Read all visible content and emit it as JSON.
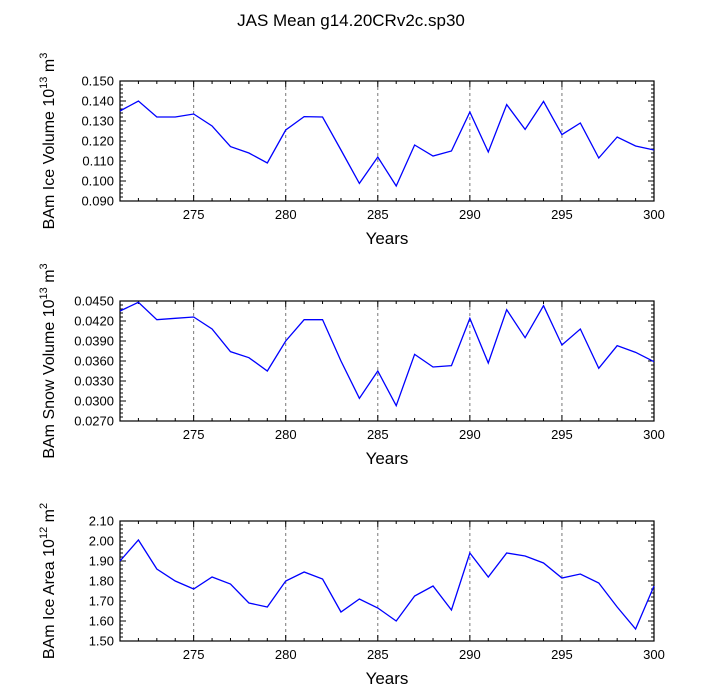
{
  "title": "JAS Mean g14.20CRv2c.sp30",
  "line_color": "#0000ff",
  "chart_data": [
    {
      "type": "line",
      "ylabel_main": "BAm Ice Volume 10",
      "ylabel_exp": "13",
      "ylabel_unit": "m",
      "ylabel_unit_exp": "3",
      "xlabel": "Years",
      "xlim": [
        271,
        300
      ],
      "ylim": [
        0.09,
        0.15
      ],
      "x_ticks": [
        275,
        280,
        285,
        290,
        295,
        300
      ],
      "x_tick_labels": [
        "275",
        "280",
        "285",
        "290",
        "295",
        "300"
      ],
      "y_ticks": [
        0.09,
        0.1,
        0.11,
        0.12,
        0.13,
        0.14,
        0.15
      ],
      "y_tick_labels": [
        "0.090",
        "0.100",
        "0.110",
        "0.120",
        "0.130",
        "0.140",
        "0.150"
      ],
      "x": [
        271,
        272,
        273,
        274,
        275,
        276,
        277,
        278,
        279,
        280,
        281,
        282,
        283,
        284,
        285,
        286,
        287,
        288,
        289,
        290,
        291,
        292,
        293,
        294,
        295,
        296,
        297,
        298,
        299,
        300
      ],
      "y": [
        0.135,
        0.14,
        0.132,
        0.132,
        0.1335,
        0.1275,
        0.1172,
        0.114,
        0.109,
        0.1255,
        0.1322,
        0.132,
        0.1155,
        0.0988,
        0.112,
        0.0975,
        0.118,
        0.1125,
        0.115,
        0.1345,
        0.1145,
        0.1382,
        0.1258,
        0.1398,
        0.1232,
        0.129,
        0.1115,
        0.122,
        0.1175,
        0.1155
      ]
    },
    {
      "type": "line",
      "ylabel_main": "BAm Snow Volume 10",
      "ylabel_exp": "13",
      "ylabel_unit": "m",
      "ylabel_unit_exp": "3",
      "xlabel": "Years",
      "xlim": [
        271,
        300
      ],
      "ylim": [
        0.027,
        0.045
      ],
      "x_ticks": [
        275,
        280,
        285,
        290,
        295,
        300
      ],
      "x_tick_labels": [
        "275",
        "280",
        "285",
        "290",
        "295",
        "300"
      ],
      "y_ticks": [
        0.027,
        0.03,
        0.033,
        0.036,
        0.039,
        0.042,
        0.045
      ],
      "y_tick_labels": [
        "0.0270",
        "0.0300",
        "0.0330",
        "0.0360",
        "0.0390",
        "0.0420",
        "0.0450"
      ],
      "x": [
        271,
        272,
        273,
        274,
        275,
        276,
        277,
        278,
        279,
        280,
        281,
        282,
        283,
        284,
        285,
        286,
        287,
        288,
        289,
        290,
        291,
        292,
        293,
        294,
        295,
        296,
        297,
        298,
        299,
        300
      ],
      "y": [
        0.0435,
        0.0448,
        0.0422,
        0.0424,
        0.0426,
        0.0408,
        0.0374,
        0.0365,
        0.0345,
        0.039,
        0.0422,
        0.0422,
        0.036,
        0.0304,
        0.0345,
        0.0293,
        0.037,
        0.0351,
        0.0353,
        0.0424,
        0.0357,
        0.0437,
        0.0395,
        0.0443,
        0.0384,
        0.0408,
        0.0349,
        0.0383,
        0.0373,
        0.0359
      ]
    },
    {
      "type": "line",
      "ylabel_main": "BAm Ice Area 10",
      "ylabel_exp": "12",
      "ylabel_unit": "m",
      "ylabel_unit_exp": "2",
      "xlabel": "Years",
      "xlim": [
        271,
        300
      ],
      "ylim": [
        1.5,
        2.1
      ],
      "x_ticks": [
        275,
        280,
        285,
        290,
        295,
        300
      ],
      "x_tick_labels": [
        "275",
        "280",
        "285",
        "290",
        "295",
        "300"
      ],
      "y_ticks": [
        1.5,
        1.6,
        1.7,
        1.8,
        1.9,
        2.0,
        2.1
      ],
      "y_tick_labels": [
        "1.50",
        "1.60",
        "1.70",
        "1.80",
        "1.90",
        "2.00",
        "2.10"
      ],
      "x": [
        271,
        272,
        273,
        274,
        275,
        276,
        277,
        278,
        279,
        280,
        281,
        282,
        283,
        284,
        285,
        286,
        287,
        288,
        289,
        290,
        291,
        292,
        293,
        294,
        295,
        296,
        297,
        298,
        299,
        300
      ],
      "y": [
        1.9,
        2.005,
        1.86,
        1.8,
        1.76,
        1.82,
        1.785,
        1.69,
        1.67,
        1.8,
        1.845,
        1.81,
        1.645,
        1.71,
        1.665,
        1.6,
        1.725,
        1.775,
        1.655,
        1.94,
        1.82,
        1.94,
        1.925,
        1.89,
        1.815,
        1.835,
        1.79,
        1.67,
        1.56,
        1.775
      ]
    }
  ]
}
